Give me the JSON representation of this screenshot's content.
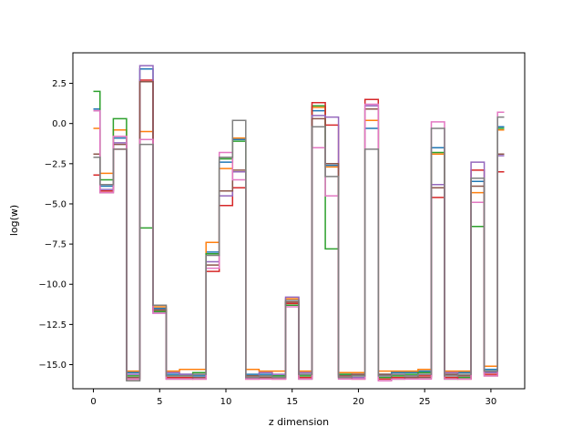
{
  "chart_data": {
    "type": "line",
    "drawstyle": "steps-mid",
    "title": "",
    "xlabel": "z dimension",
    "ylabel": "log(w)",
    "xlim": [
      -1.55,
      32.55
    ],
    "ylim": [
      -16.5,
      4.4
    ],
    "xticks": [
      0,
      5,
      10,
      15,
      20,
      25,
      30
    ],
    "yticks": [
      2.5,
      0.0,
      -2.5,
      -5.0,
      -7.5,
      -10.0,
      -12.5,
      -15.0
    ],
    "ytick_labels": [
      "2.5",
      "0.0",
      "−2.5",
      "−5.0",
      "−7.5",
      "−10.0",
      "−12.5",
      "−15.0"
    ],
    "grid": false,
    "legend": false,
    "x": [
      0,
      1,
      2,
      3,
      4,
      5,
      6,
      7,
      8,
      9,
      10,
      11,
      12,
      13,
      14,
      15,
      16,
      17,
      18,
      19,
      20,
      21,
      22,
      23,
      24,
      25,
      26,
      27,
      28,
      29,
      30,
      31
    ],
    "series": [
      {
        "color": "#1f77b4",
        "values": [
          0.9,
          -3.9,
          -0.9,
          -15.5,
          3.4,
          -11.5,
          -15.6,
          -15.6,
          -15.7,
          -8.0,
          -2.4,
          -1.0,
          -15.6,
          -15.6,
          -15.7,
          -11.1,
          -15.6,
          0.8,
          -2.6,
          -15.6,
          -15.6,
          -0.3,
          -15.6,
          -15.5,
          -15.5,
          -15.4,
          -1.5,
          -15.6,
          -15.5,
          -3.6,
          -15.3,
          -0.2
        ]
      },
      {
        "color": "#ff7f0e",
        "values": [
          -0.3,
          -3.1,
          -0.4,
          -15.4,
          -0.5,
          -11.4,
          -15.4,
          -15.3,
          -15.3,
          -7.4,
          -2.8,
          -0.9,
          -15.3,
          -15.4,
          -15.4,
          -10.9,
          -15.4,
          1.0,
          -2.7,
          -15.5,
          -15.5,
          0.2,
          -15.4,
          -15.4,
          -15.4,
          -15.3,
          -1.9,
          -15.4,
          -15.4,
          -4.3,
          -15.1,
          -0.4
        ]
      },
      {
        "color": "#2ca02c",
        "values": [
          2.0,
          -3.5,
          0.3,
          -15.7,
          -6.5,
          -11.7,
          -15.7,
          -15.7,
          -15.5,
          -8.1,
          -2.2,
          -1.1,
          -15.7,
          -15.7,
          -15.7,
          -11.3,
          -15.7,
          1.1,
          -7.8,
          -15.6,
          -15.7,
          0.9,
          -15.8,
          -15.7,
          -15.6,
          -15.5,
          -1.8,
          -15.9,
          -15.8,
          -6.4,
          -15.4,
          -0.3
        ]
      },
      {
        "color": "#d62728",
        "values": [
          -3.2,
          -4.2,
          -1.6,
          -15.9,
          2.7,
          -11.6,
          -15.8,
          -15.8,
          -15.9,
          -9.2,
          -5.1,
          -4.0,
          -15.9,
          -15.8,
          -15.9,
          -11.2,
          -15.8,
          1.3,
          -0.1,
          -15.8,
          -15.9,
          1.5,
          -15.9,
          -15.8,
          -15.8,
          -15.7,
          -4.6,
          -15.8,
          -15.9,
          -2.9,
          -15.6,
          -3.0
        ]
      },
      {
        "color": "#9467bd",
        "values": [
          0.8,
          -4.1,
          -1.2,
          -15.6,
          3.6,
          -11.8,
          -15.5,
          -15.6,
          -15.6,
          -8.6,
          -4.5,
          -3.0,
          -15.8,
          -15.5,
          -15.6,
          -10.8,
          -15.5,
          0.5,
          0.4,
          -15.7,
          -15.8,
          1.1,
          -15.7,
          -15.6,
          -15.7,
          -15.6,
          -3.8,
          -15.5,
          -15.7,
          -2.4,
          -15.5,
          -2.0
        ]
      },
      {
        "color": "#8c564b",
        "values": [
          -1.9,
          -4.3,
          -1.3,
          -15.8,
          2.6,
          -11.6,
          -15.9,
          -15.9,
          -15.8,
          -8.8,
          -4.2,
          -2.9,
          -15.7,
          -15.8,
          -15.8,
          -11.1,
          -15.9,
          0.3,
          -2.5,
          -15.7,
          -15.6,
          0.9,
          -15.6,
          -15.9,
          -15.8,
          -15.8,
          -4.0,
          -15.6,
          -15.7,
          -3.9,
          -15.7,
          -1.9
        ]
      },
      {
        "color": "#e377c2",
        "values": [
          0.8,
          -4.3,
          -0.8,
          -15.9,
          -1.0,
          -11.8,
          -15.9,
          -15.9,
          -15.9,
          -9.0,
          -1.8,
          -3.5,
          -15.9,
          -15.9,
          -15.9,
          -11.4,
          -15.9,
          -1.5,
          -4.5,
          -15.9,
          -15.9,
          1.2,
          -16.0,
          -15.9,
          -15.9,
          -15.9,
          0.1,
          -15.9,
          -15.9,
          -4.9,
          -15.7,
          0.7
        ]
      },
      {
        "color": "#7f7f7f",
        "values": [
          -2.1,
          -3.8,
          -1.6,
          -16.0,
          -1.3,
          -11.3,
          -15.7,
          -15.7,
          -15.6,
          -8.2,
          -2.1,
          0.2,
          -15.8,
          -15.7,
          -15.8,
          -11.0,
          -15.6,
          -0.2,
          -3.3,
          -15.8,
          -15.7,
          -1.6,
          -15.7,
          -15.6,
          -15.7,
          -15.6,
          -0.3,
          -15.7,
          -15.6,
          -3.4,
          -15.4,
          0.4
        ]
      }
    ]
  }
}
